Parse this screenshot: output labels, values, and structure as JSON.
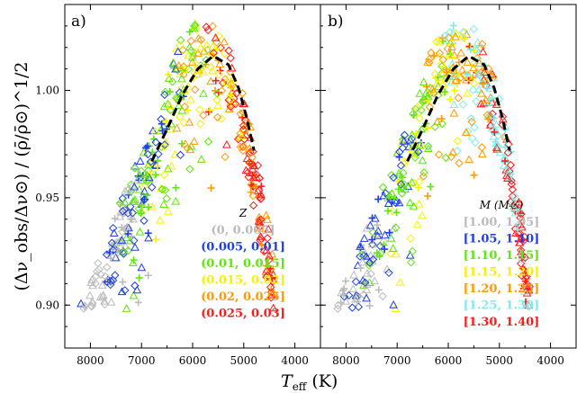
{
  "chart_data": [
    {
      "type": "scatter",
      "panel": "a)",
      "xlim": [
        8500,
        3500
      ],
      "ylim": [
        0.88,
        1.04
      ],
      "xticks": [
        "8000",
        "7000",
        "6000",
        "5000",
        "4000"
      ],
      "xtick_values": [
        8000,
        7000,
        6000,
        5000,
        4000
      ],
      "yticks": [
        "0.90",
        "0.95",
        "1.00"
      ],
      "ytick_values": [
        0.9,
        0.95,
        1.0
      ],
      "legend_title": "Z",
      "legend_entries": [
        {
          "label": "(0, 0.005]",
          "color": "#bbbbbb"
        },
        {
          "label": "(0.005, 0.01]",
          "color": "#1f3fe0"
        },
        {
          "label": "(0.01, 0.015]",
          "color": "#5ee60f"
        },
        {
          "label": "(0.015, 0.02]",
          "color": "#f3f300"
        },
        {
          "label": "(0.02, 0.025]",
          "color": "#ff9a00"
        },
        {
          "label": "(0.025, 0.03]",
          "color": "#ff1a1a"
        }
      ],
      "fit_curve": [
        [
          6800,
          0.967
        ],
        [
          6500,
          0.982
        ],
        [
          6200,
          0.998
        ],
        [
          5900,
          1.01
        ],
        [
          5600,
          1.016
        ],
        [
          5300,
          1.012
        ],
        [
          5100,
          1.001
        ],
        [
          4950,
          0.988
        ],
        [
          4800,
          0.972
        ]
      ]
    },
    {
      "type": "scatter",
      "panel": "b)",
      "xlim": [
        8500,
        3500
      ],
      "ylim": [
        0.88,
        1.04
      ],
      "xticks": [
        "8000",
        "7000",
        "6000",
        "5000",
        "4000"
      ],
      "xtick_values": [
        8000,
        7000,
        6000,
        5000,
        4000
      ],
      "yticks": [
        "0.90",
        "0.95",
        "1.00"
      ],
      "ytick_values": [
        0.9,
        0.95,
        1.0
      ],
      "legend_title": "M (M☉)",
      "legend_entries": [
        {
          "label": "[1.00, 1.05]",
          "color": "#bbbbbb"
        },
        {
          "label": "[1.05, 1.10]",
          "color": "#1f3fe0"
        },
        {
          "label": "[1.10, 1.15]",
          "color": "#5ee60f"
        },
        {
          "label": "[1.15, 1.20]",
          "color": "#f3f300"
        },
        {
          "label": "[1.20, 1.25]",
          "color": "#ff9a00"
        },
        {
          "label": "[1.25, 1.30]",
          "color": "#7eecec"
        },
        {
          "label": "[1.30, 1.40]",
          "color": "#ff1a1a"
        }
      ],
      "fit_curve": [
        [
          6800,
          0.967
        ],
        [
          6500,
          0.982
        ],
        [
          6200,
          0.998
        ],
        [
          5900,
          1.01
        ],
        [
          5600,
          1.016
        ],
        [
          5300,
          1.012
        ],
        [
          5100,
          1.001
        ],
        [
          4950,
          0.988
        ],
        [
          4800,
          0.972
        ]
      ]
    }
  ],
  "xlabel_main": "T",
  "xlabel_sub": "eff",
  "xlabel_unit": "(K)",
  "ylabel": "(Δν_obs/Δν⊙) / (ρ̄/ρ̄⊙)^1/2"
}
